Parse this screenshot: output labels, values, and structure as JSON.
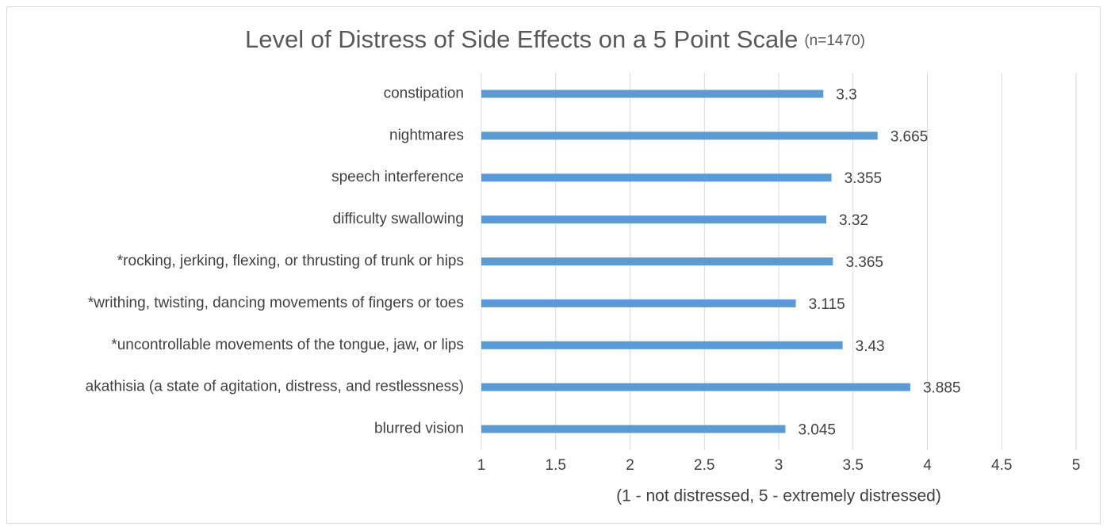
{
  "chart_data": {
    "type": "bar",
    "orientation": "horizontal",
    "title": "Level of Distress of Side Effects on a 5 Point Scale",
    "subtitle": "(n=1470)",
    "x_label": "(1 - not distressed, 5 - extremely distressed)",
    "categories": [
      "constipation",
      "nightmares",
      "speech interference",
      "difficulty swallowing",
      "*rocking, jerking, flexing, or thrusting of trunk or hips",
      "*writhing, twisting, dancing movements of fingers or toes",
      "*uncontrollable movements of the tongue, jaw, or lips",
      "akathisia (a state of agitation, distress, and restlessness)",
      "blurred vision"
    ],
    "values": [
      3.3,
      3.665,
      3.355,
      3.32,
      3.365,
      3.115,
      3.43,
      3.885,
      3.045
    ],
    "color": "#5b9bd5",
    "xlim": [
      1,
      5
    ],
    "xticks": [
      1,
      1.5,
      2,
      2.5,
      3,
      3.5,
      4,
      4.5,
      5
    ],
    "grid": true
  }
}
